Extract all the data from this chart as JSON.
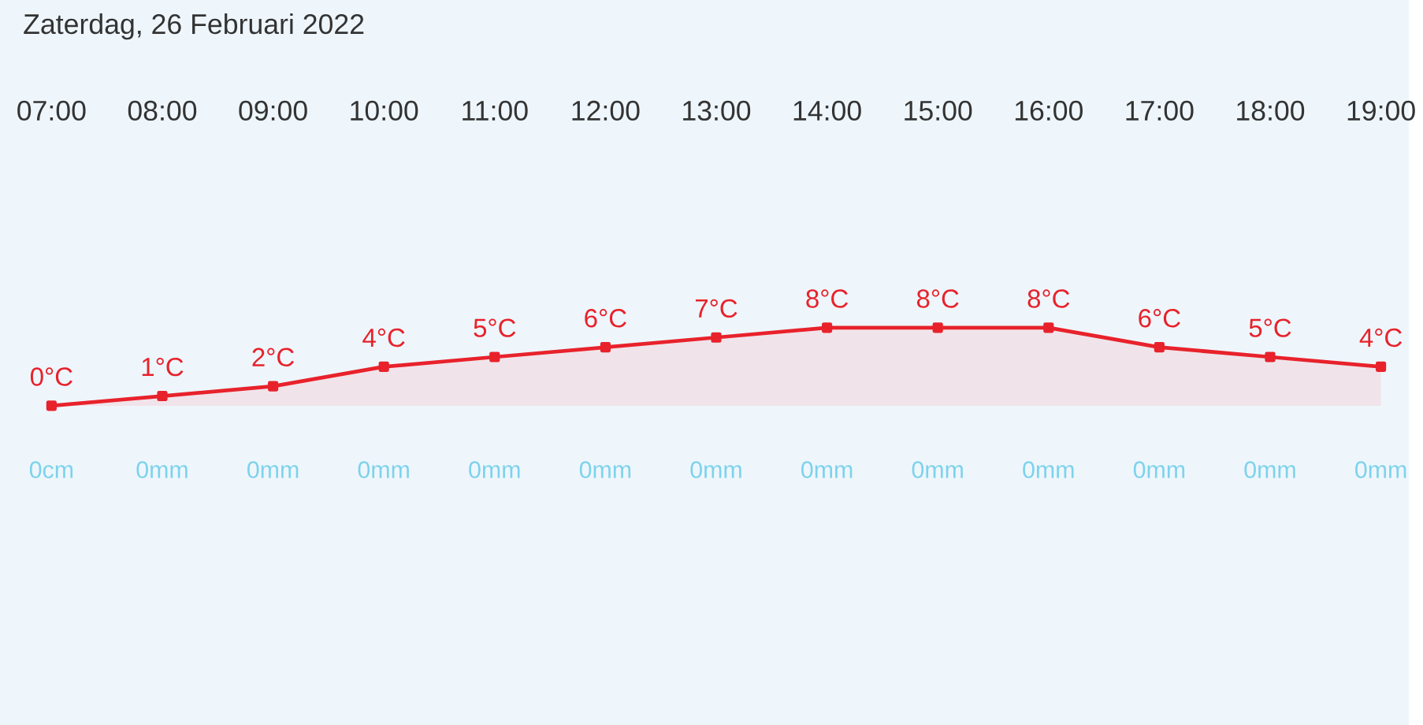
{
  "chart_data": {
    "type": "area",
    "title": "Zaterdag, 26 Februari 2022",
    "categories": [
      "07:00",
      "08:00",
      "09:00",
      "10:00",
      "11:00",
      "12:00",
      "13:00",
      "14:00",
      "15:00",
      "16:00",
      "17:00",
      "18:00",
      "19:00"
    ],
    "series": [
      {
        "color": "#e8222b",
        "values": [
          0,
          1,
          2,
          4,
          5,
          6,
          7,
          8,
          8,
          8,
          6,
          5,
          4
        ],
        "value_labels": [
          "0°C",
          "1°C",
          "2°C",
          "4°C",
          "5°C",
          "6°C",
          "7°C",
          "8°C",
          "8°C",
          "8°C",
          "6°C",
          "5°C",
          "4°C"
        ]
      }
    ],
    "marker": "square",
    "annotations": [
      "0cm",
      "0mm",
      "0mm",
      "0mm",
      "0mm",
      "0mm",
      "0mm",
      "0mm",
      "0mm",
      "0mm",
      "0mm",
      "0mm",
      "0mm"
    ]
  }
}
